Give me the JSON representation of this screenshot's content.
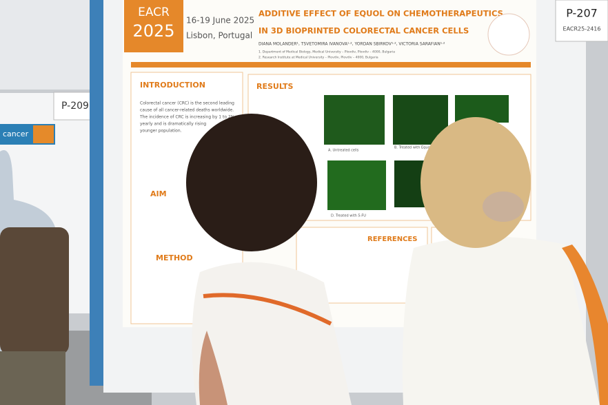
{
  "poster": {
    "logo": [
      "EACR",
      "2025"
    ],
    "dates": "16-19 June 2025",
    "location": "Lisbon, Portugal",
    "title": [
      "ADDITIVE EFFECT OF EQUOL ON CHEMOTHERAPEUTICS",
      "IN 3D BIOPRINTED COLORECTAL CANCER CELLS"
    ],
    "authors": "DIANA MOLANDER¹, TSVETOMIRA IVANOVA¹·², YORDAN SBIRKOV¹·², VICTORIA SARAFIAN¹·²",
    "affiliations": [
      "1. Department of Medical Biology, Medical University – Plovdiv, Plovdiv – 4000, Bulgaria",
      "2. Research Institute at Medical University – Plovdiv, Plovdiv – 4000, Bulgaria"
    ],
    "sections": {
      "introduction": "INTRODUCTION",
      "results": "RESULTS",
      "aim": "AIM",
      "method": "METHOD",
      "references": "REFERENCES"
    },
    "intro_text": [
      "Colorectal cancer (CRC) is the second leading",
      "cause of all cancer-related deaths worldwide.",
      "The incidence of CRC is increasing by 1 to 2%",
      "yearly and is dramatically rising",
      "younger population."
    ],
    "image_captions": [
      "A. Untreated cells",
      "B. Treated with Equol",
      "D. Treated with 5-FU"
    ]
  },
  "board_label": {
    "code": "P-207",
    "id": "EACR25-2416"
  },
  "left_board": {
    "code": "P-209",
    "text": "cancer"
  }
}
